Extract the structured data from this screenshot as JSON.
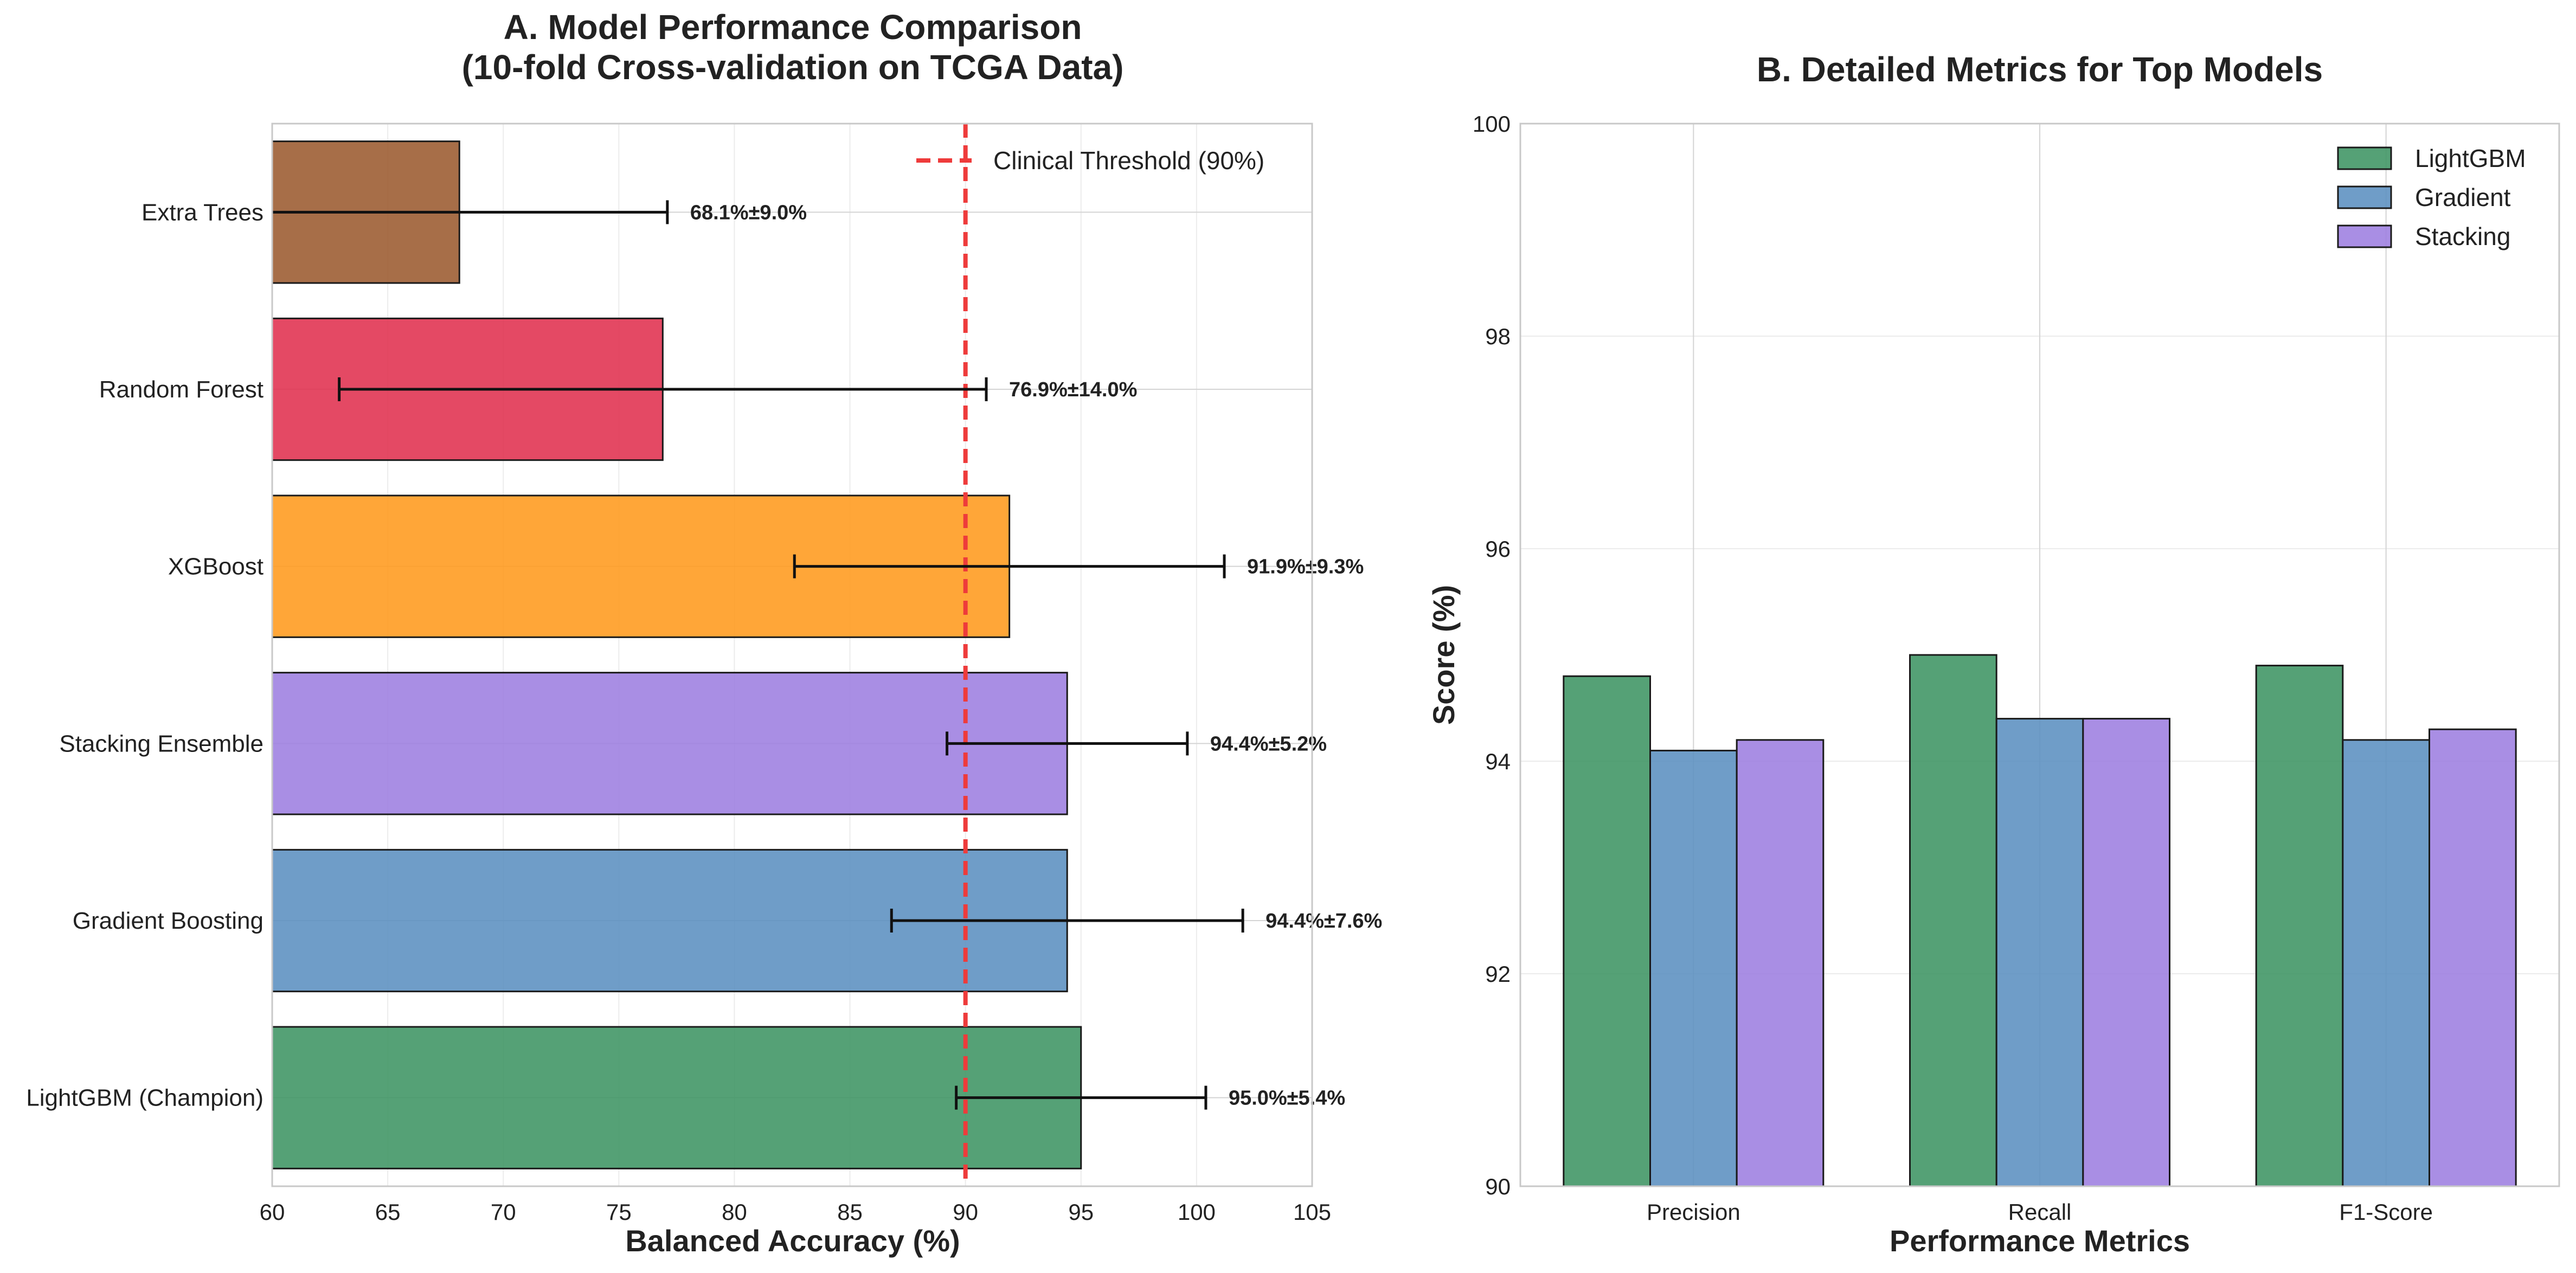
{
  "chart_data": [
    {
      "type": "bar",
      "orientation": "horizontal",
      "title": "A. Model Performance Comparison",
      "subtitle": "(10-fold Cross-validation on TCGA Data)",
      "xlabel": "Balanced Accuracy (%)",
      "ylabel": "",
      "xlim": [
        60,
        105
      ],
      "xticks": [
        60,
        65,
        70,
        75,
        80,
        85,
        90,
        95,
        100,
        105
      ],
      "grid": true,
      "legend_position": "top-right",
      "categories": [
        "LightGBM (Champion)",
        "Gradient Boosting",
        "Stacking Ensemble",
        "XGBoost",
        "Random Forest",
        "Extra Trees"
      ],
      "values": [
        95.0,
        94.4,
        94.4,
        91.9,
        76.9,
        68.1
      ],
      "errors": [
        5.4,
        7.6,
        5.2,
        9.3,
        14.0,
        9.0
      ],
      "data_labels": [
        "95.0%±5.4%",
        "94.4%±7.6%",
        "94.4%±5.2%",
        "91.9%±9.3%",
        "76.9%±14.0%",
        "68.1%±9.0%"
      ],
      "colors": [
        "#3d9463",
        "#5b8fc0",
        "#9d7ee0",
        "#ff9a1c",
        "#e0304f",
        "#9b5a2f"
      ],
      "reference_line": {
        "value": 90,
        "label": "Clinical Threshold (90%)",
        "color": "#ee3b3b"
      }
    },
    {
      "type": "bar",
      "title": "B. Detailed Metrics for Top Models",
      "xlabel": "Performance Metrics",
      "ylabel": "Score (%)",
      "ylim": [
        90,
        100
      ],
      "yticks": [
        90,
        92,
        94,
        96,
        98,
        100
      ],
      "grid": true,
      "legend_position": "top-right",
      "categories": [
        "Precision",
        "Recall",
        "F1-Score"
      ],
      "series": [
        {
          "name": "LightGBM",
          "values": [
            94.8,
            95.0,
            94.9
          ],
          "color": "#3d9463"
        },
        {
          "name": "Gradient",
          "values": [
            94.1,
            94.4,
            94.2
          ],
          "color": "#5b8fc0"
        },
        {
          "name": "Stacking",
          "values": [
            94.2,
            94.4,
            94.3
          ],
          "color": "#9d7ee0"
        }
      ]
    }
  ]
}
